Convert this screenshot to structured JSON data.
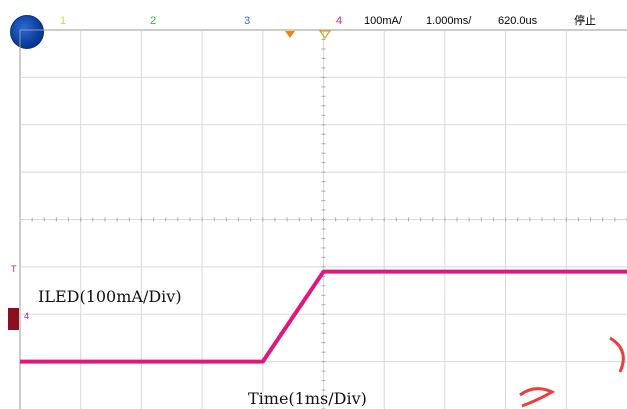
{
  "status_bar": {
    "ch1": "1",
    "ch2": "2",
    "ch3": "3",
    "ch4": "4",
    "scale_v": "100mA/",
    "scale_t": "1.000ms/",
    "delay": "620.0us",
    "run_state": "停止",
    "colors": {
      "ch1": "#e8d23a",
      "ch2": "#3db84a",
      "ch3": "#3a6fd8",
      "ch4": "#d0208a",
      "marker": "#e08a10"
    }
  },
  "logo_text": "",
  "markers": {
    "trigger": "T",
    "channel": "4"
  },
  "chart_data": {
    "type": "line",
    "title": "",
    "series": [
      {
        "name": "ILED",
        "color": "#e0187e",
        "x": [
          -5.0,
          -1.0,
          0.0,
          5.0
        ],
        "y": [
          0.0,
          0.0,
          0.19,
          0.19
        ]
      }
    ],
    "x_unit": "ms",
    "y_unit": "A",
    "xlim": [
      -5.0,
      5.0
    ],
    "ylim": [
      -0.1,
      0.7
    ],
    "grid": true,
    "divisions": {
      "x": 10,
      "y": 8
    },
    "annotations": {
      "signal_label": "ILED(100mA/Div)",
      "time_label": "Time(1ms/Div)"
    }
  }
}
